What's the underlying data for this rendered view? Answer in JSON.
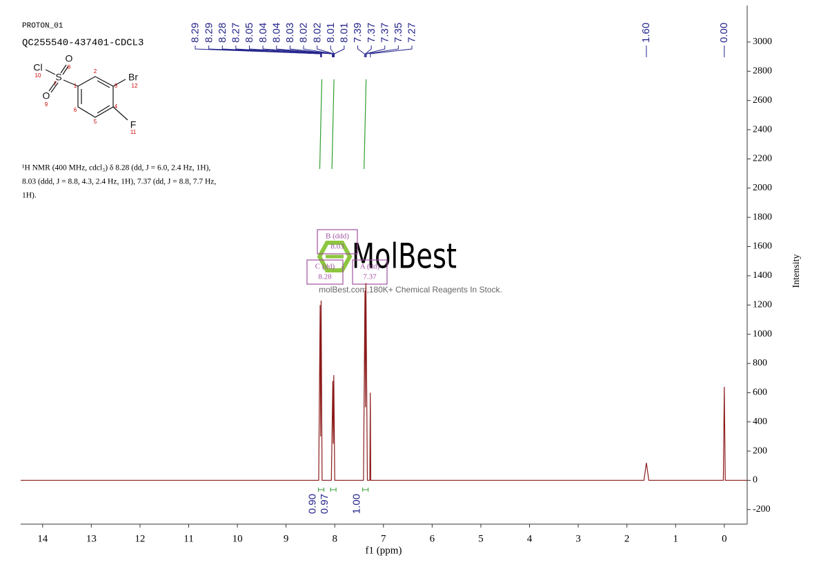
{
  "chart_data": {
    "type": "line",
    "header": [
      "PROTON_01",
      "QC255540-437401-CDCL3"
    ],
    "description": [
      "¹H NMR (400 MHz, cdcl₃) δ 8.28 (dd, J = 6.0, 2.4 Hz, 1H),",
      "8.03 (ddd, J = 8.8, 4.3, 2.4 Hz, 1H), 7.37 (dd, J = 8.8, 7.7 Hz,",
      "1H)."
    ],
    "structure": {
      "atoms": [
        "Cl",
        "10",
        "S",
        "7",
        "O",
        "8",
        "O",
        "9",
        "Br",
        "12",
        "F",
        "11",
        "1",
        "2",
        "3",
        "4",
        "5",
        "6"
      ]
    },
    "watermark": {
      "brand": "MolBest",
      "tagline": "molBest.com,180K+ Chemical Reagents In Stock."
    },
    "multiplets": [
      {
        "name": "B (ddd)",
        "shift": "8.03"
      },
      {
        "name": "C (dd)",
        "shift": "8.28"
      },
      {
        "name": "A (dd)",
        "shift": "7.37"
      }
    ],
    "peaks": [
      {
        "value": 8.29,
        "label": "8.29"
      },
      {
        "value": 8.29,
        "label": "8.29"
      },
      {
        "value": 8.28,
        "label": "8.28"
      },
      {
        "value": 8.27,
        "label": "8.27"
      },
      {
        "value": 8.05,
        "label": "8.05"
      },
      {
        "value": 8.04,
        "label": "8.04"
      },
      {
        "value": 8.04,
        "label": "8.04"
      },
      {
        "value": 8.03,
        "label": "8.03"
      },
      {
        "value": 8.02,
        "label": "8.02"
      },
      {
        "value": 8.02,
        "label": "8.02"
      },
      {
        "value": 8.01,
        "label": "8.01"
      },
      {
        "value": 8.01,
        "label": "8.01"
      },
      {
        "value": 7.39,
        "label": "7.39"
      },
      {
        "value": 7.37,
        "label": "7.37"
      },
      {
        "value": 7.37,
        "label": "7.37"
      },
      {
        "value": 7.35,
        "label": "7.35"
      },
      {
        "value": 7.27,
        "label": "7.27"
      }
    ],
    "single_peaks": [
      {
        "value": 1.6,
        "label": "1.60"
      },
      {
        "value": 0,
        "label": "0.00"
      }
    ],
    "integrals": [
      {
        "ppm": 8.28,
        "value": 0.9,
        "label": "0.90"
      },
      {
        "ppm": 8.03,
        "value": 0.97,
        "label": "0.97"
      },
      {
        "ppm": 7.37,
        "value": 1,
        "label": "1.00"
      }
    ],
    "spectrum": {
      "name": "PROTON_01",
      "color": "#8b1a1a",
      "x": [
        14.45,
        8.33,
        8.3,
        8.29,
        8.28,
        8.26,
        8.07,
        8.04,
        8.03,
        8.02,
        8.0,
        7.41,
        7.38,
        7.37,
        7.36,
        7.33,
        7.28,
        7.27,
        7.26,
        1.65,
        1.6,
        1.55,
        0.02,
        0,
        -0.02,
        -0.47
      ],
      "values": [
        0,
        0,
        1200,
        300,
        1230,
        0,
        0,
        680,
        250,
        720,
        0,
        0,
        1300,
        500,
        1350,
        0,
        0,
        600,
        0,
        0,
        120,
        0,
        0,
        640,
        0,
        0
      ]
    },
    "xlabel": "f1 (ppm)",
    "ylabel": "Intensity",
    "xlim": [
      14.45,
      -0.47
    ],
    "ylim": [
      -300,
      3250
    ],
    "xticks": [
      14,
      13,
      12,
      11,
      10,
      9,
      8,
      7,
      6,
      5,
      4,
      3,
      2,
      1,
      0
    ],
    "yticks": [
      -200,
      0,
      200,
      400,
      600,
      800,
      1000,
      1200,
      1400,
      1600,
      1800,
      2000,
      2200,
      2400,
      2600,
      2800,
      3000
    ]
  }
}
